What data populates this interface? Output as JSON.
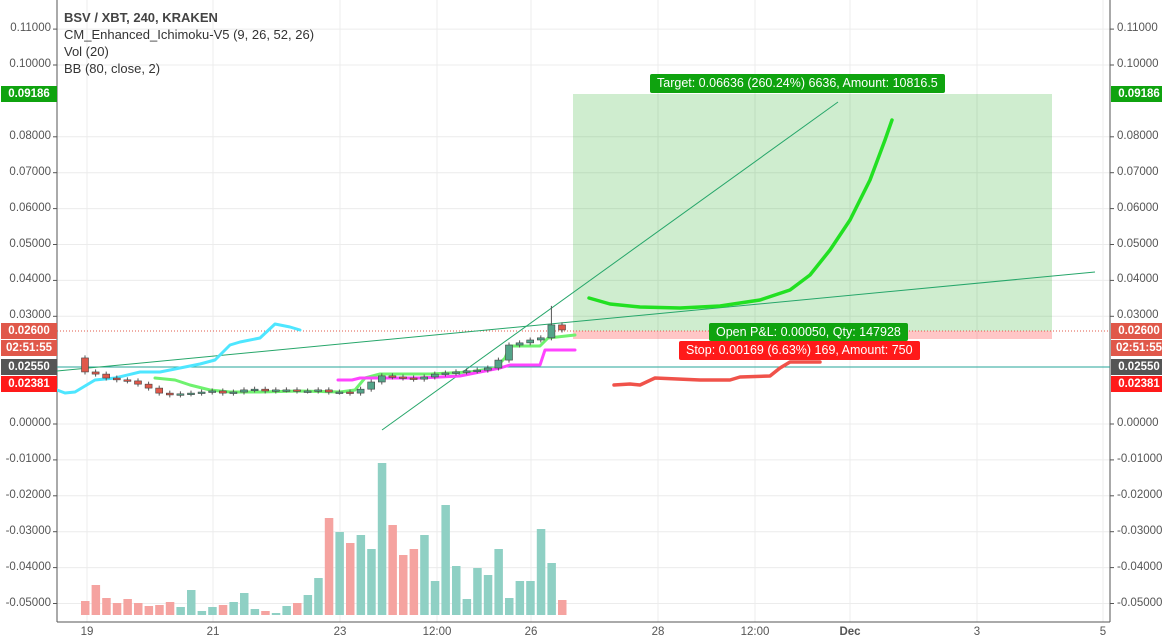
{
  "legend": {
    "title": "BSV / XBT, 240, KRAKEN",
    "indicators": [
      "CM_Enhanced_Ichimoku-V5 (9, 26, 52, 26)",
      "Vol (20)",
      "BB (80, close, 2)"
    ]
  },
  "price_axis": {
    "ticks": [
      "0.11000",
      "0.10000",
      "0.08000",
      "0.07000",
      "0.06000",
      "0.05000",
      "0.04000",
      "0.03000",
      "0.00000",
      "-0.01000",
      "-0.02000",
      "-0.03000",
      "-0.04000",
      "-0.05000"
    ],
    "tick_values": [
      0.11,
      0.1,
      0.08,
      0.07,
      0.06,
      0.05,
      0.04,
      0.03,
      0.0,
      -0.01,
      -0.02,
      -0.03,
      -0.04,
      -0.05
    ],
    "tags": [
      {
        "text": "0.09186",
        "color": "#0fa30f",
        "value": 0.09186
      },
      {
        "text": "0.02600",
        "color": "#e0584a",
        "value": 0.026
      },
      {
        "text": "02:51:55",
        "color": "#e0584a",
        "value": 0.0212
      },
      {
        "text": "0.02550",
        "color": "#555555",
        "value": 0.0159
      },
      {
        "text": "0.02381",
        "color": "#ff1a1a",
        "value": 0.0111
      }
    ]
  },
  "time_axis": {
    "labels": [
      "19",
      "21",
      "23",
      "12:00",
      "26",
      "28",
      "12:00",
      "Dec",
      "3",
      "5"
    ]
  },
  "position": {
    "target_label": "Target: 0.06636 (260.24%) 6636, Amount: 10816.5",
    "pnl_label": "Open P&L: 0.00050, Qty: 147928",
    "stop_label": "Stop: 0.00169 (6.63%) 169, Amount: 750",
    "profit_color": "#0fa30f",
    "stop_color": "#ff1a1a"
  },
  "chart_data": {
    "type": "candlestick",
    "open_first": 0.0184,
    "closes": [
      0.0145,
      0.0139,
      0.0128,
      0.0123,
      0.012,
      0.0111,
      0.01,
      0.0086,
      0.0081,
      0.0084,
      0.0086,
      0.0089,
      0.0092,
      0.0086,
      0.0089,
      0.0095,
      0.0097,
      0.0092,
      0.0095,
      0.0095,
      0.0092,
      0.0092,
      0.0095,
      0.0089,
      0.0089,
      0.0086,
      0.0097,
      0.0117,
      0.0134,
      0.0131,
      0.0128,
      0.0125,
      0.0131,
      0.0139,
      0.0142,
      0.0145,
      0.0148,
      0.015,
      0.0156,
      0.0178,
      0.022,
      0.0226,
      0.0234,
      0.024,
      0.0276,
      0.0262
    ],
    "volume_relative": [
      14,
      30,
      17,
      12,
      16,
      12,
      9,
      10,
      13,
      8,
      25,
      4,
      8,
      10,
      13,
      22,
      6,
      4,
      2,
      9,
      12,
      20,
      37,
      97,
      83,
      72,
      80,
      66,
      152,
      90,
      60,
      66,
      80,
      34,
      110,
      49,
      16,
      47,
      40,
      66,
      17,
      34,
      34,
      86,
      52,
      15
    ],
    "up_color": "#53a489",
    "down_color": "#e0584a"
  }
}
